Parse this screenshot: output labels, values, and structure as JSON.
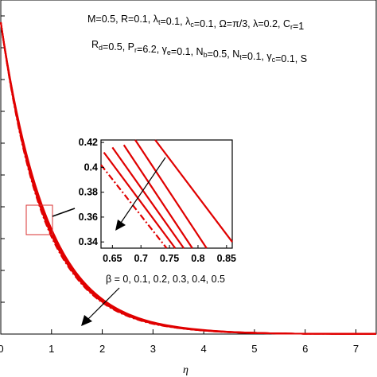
{
  "chart_data": {
    "type": "line",
    "title": "",
    "xlabel": "η",
    "ylabel": "",
    "xlim": [
      0,
      7.4
    ],
    "x_ticks": [
      "0",
      "1",
      "2",
      "3",
      "4",
      "5",
      "6",
      "7"
    ],
    "params_line1": "M=0.5, R=0.1, λ_t=0.1, λ_c=0.1, Ω=π/3, λ=0.2, C_r=1",
    "params_line2": "R_d=0.5, P_r=6.2, γ_e=0.1, N_b=0.5, N_t=0.1, γ_c=0.1, S",
    "annotation": "β = 0, 0.1, 0.2, 0.3, 0.4, 0.5",
    "color": "#e00000",
    "series": [
      {
        "beta": 0,
        "x": [
          0,
          0.5,
          1,
          1.5,
          2,
          3,
          4,
          5,
          6,
          7.4
        ],
        "y": [
          0.98,
          0.57,
          0.33,
          0.19,
          0.11,
          0.037,
          0.013,
          0.004,
          0.001,
          0
        ]
      },
      {
        "beta": 0.1,
        "x": [
          0,
          0.5,
          1,
          1.5,
          2,
          3,
          4,
          5,
          6,
          7.4
        ],
        "y": [
          0.98,
          0.565,
          0.325,
          0.187,
          0.107,
          0.036,
          0.012,
          0.004,
          0.001,
          0
        ]
      },
      {
        "beta": 0.2,
        "x": [
          0,
          0.5,
          1,
          1.5,
          2,
          3,
          4,
          5,
          6,
          7.4
        ],
        "y": [
          0.98,
          0.56,
          0.32,
          0.184,
          0.105,
          0.035,
          0.012,
          0.004,
          0.001,
          0
        ]
      },
      {
        "beta": 0.3,
        "x": [
          0,
          0.5,
          1,
          1.5,
          2,
          3,
          4,
          5,
          6,
          7.4
        ],
        "y": [
          0.98,
          0.555,
          0.315,
          0.181,
          0.103,
          0.034,
          0.011,
          0.004,
          0.001,
          0
        ]
      },
      {
        "beta": 0.4,
        "x": [
          0,
          0.5,
          1,
          1.5,
          2,
          3,
          4,
          5,
          6,
          7.4
        ],
        "y": [
          0.98,
          0.55,
          0.31,
          0.178,
          0.101,
          0.033,
          0.011,
          0.003,
          0.001,
          0
        ]
      },
      {
        "beta": 0.5,
        "x": [
          0,
          0.5,
          1,
          1.5,
          2,
          3,
          4,
          5,
          6,
          7.4
        ],
        "y": [
          0.98,
          0.545,
          0.305,
          0.175,
          0.099,
          0.032,
          0.011,
          0.003,
          0.001,
          0
        ]
      }
    ],
    "inset": {
      "xlim": [
        0.63,
        0.86
      ],
      "ylim": [
        0.335,
        0.422
      ],
      "x_ticks": [
        "0.65",
        "0.7",
        "0.75",
        "0.8",
        "0.85"
      ],
      "y_ticks": [
        "0.42",
        "0.4",
        "0.38",
        "0.36",
        "0.34"
      ],
      "series": [
        {
          "beta": 0,
          "x": [
            0.725,
            0.86
          ],
          "y": [
            0.422,
            0.34
          ]
        },
        {
          "beta": 0.1,
          "x": [
            0.69,
            0.815
          ],
          "y": [
            0.422,
            0.335
          ]
        },
        {
          "beta": 0.2,
          "x": [
            0.67,
            0.79
          ],
          "y": [
            0.418,
            0.335
          ]
        },
        {
          "beta": 0.3,
          "x": [
            0.65,
            0.775
          ],
          "y": [
            0.416,
            0.335
          ]
        },
        {
          "beta": 0.4,
          "x": [
            0.635,
            0.76
          ],
          "y": [
            0.412,
            0.335
          ]
        },
        {
          "beta": 0.5,
          "x": [
            0.63,
            0.745
          ],
          "y": [
            0.402,
            0.335
          ]
        }
      ]
    }
  }
}
